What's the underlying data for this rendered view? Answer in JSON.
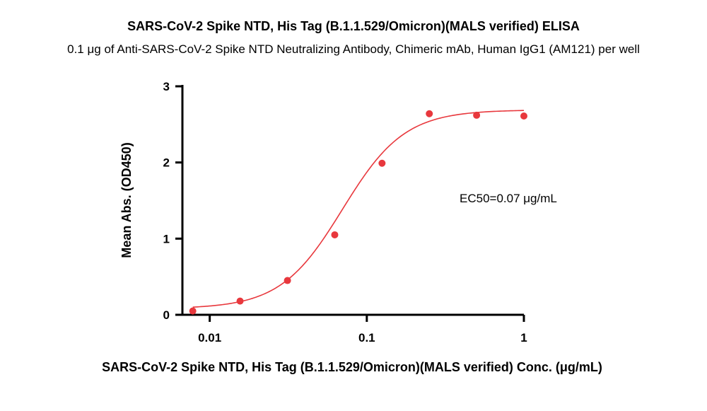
{
  "chart_data": {
    "type": "scatter",
    "title": "SARS-CoV-2 Spike NTD, His Tag (B.1.1.529/Omicron)(MALS verified) ELISA",
    "subtitle": "0.1 μg of Anti-SARS-CoV-2 Spike NTD Neutralizing Antibody, Chimeric mAb, Human IgG1 (AM121) per well",
    "xlabel": "SARS-CoV-2 Spike NTD, His Tag (B.1.1.529/Omicron)(MALS verified)  Conc. (μg/mL)",
    "ylabel": "Mean Abs. (OD450)",
    "x_scale": "log",
    "xlim": [
      0.0067,
      1.0
    ],
    "ylim": [
      0,
      3
    ],
    "x_ticks": [
      {
        "value": 0.01,
        "label": "0.01"
      },
      {
        "value": 0.1,
        "label": "0.1"
      },
      {
        "value": 1,
        "label": "1"
      }
    ],
    "y_ticks": [
      {
        "value": 0,
        "label": "0"
      },
      {
        "value": 1,
        "label": "1"
      },
      {
        "value": 2,
        "label": "2"
      },
      {
        "value": 3,
        "label": "3"
      }
    ],
    "grid": false,
    "marker_color": "#e8383d",
    "line_color": "#e8383d",
    "series": [
      {
        "points": [
          {
            "x": 0.0078,
            "y": 0.05
          },
          {
            "x": 0.0156,
            "y": 0.18
          },
          {
            "x": 0.03125,
            "y": 0.45
          },
          {
            "x": 0.0625,
            "y": 1.05
          },
          {
            "x": 0.125,
            "y": 1.99
          },
          {
            "x": 0.25,
            "y": 2.64
          },
          {
            "x": 0.5,
            "y": 2.62
          },
          {
            "x": 1.0,
            "y": 2.61
          }
        ],
        "fit": {
          "model": "4PL",
          "bottom": 0.08,
          "top": 2.69,
          "ec50": 0.07,
          "hill": 2.2,
          "x_range": [
            0.0078,
            1.0
          ]
        }
      }
    ],
    "annotations": [
      {
        "text": "EC50=0.07 μg/mL"
      }
    ]
  }
}
